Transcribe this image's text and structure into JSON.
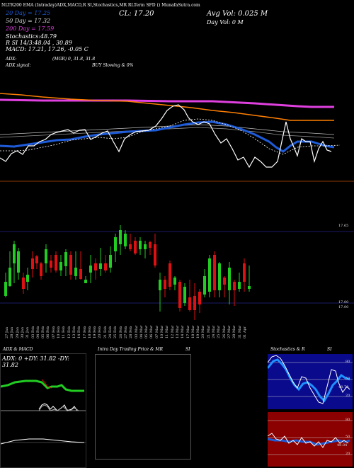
{
  "header": {
    "top_line": "NLTR200 EMA (Intraday)ADX,MACD,R   SI,Stochastics,MR   RLTerm SFD   () MunafaSutra.com",
    "sma20": "20  Day = 17.25",
    "sma50": "50  Day = 17.32",
    "sma200": "200  Day = 17.59",
    "stochastics": "Stochastics:48.79",
    "rsi": "R        SI 14/3:48.04  , 30.89",
    "macd": "MACD: 17.21,  17.26, -0.05 C",
    "close": "CL: 17.20",
    "avg_vol": "Avg Vol: 0.025  M",
    "day_vol": "Day Vol: 0    M"
  },
  "adx_line": {
    "adx": "ADX:",
    "mgr": "(MGR) 0,  31.8,  31.8",
    "signal": "ADX  signal:",
    "buy": "BUY Slowing & 0%"
  },
  "price_axis": {
    "top": "17.65",
    "bottom": "17.00",
    "bottom2": "17.00"
  },
  "x_labels": [
    "27 Jan",
    "28 Jan",
    "29 Jan",
    "30 Jan",
    "31 Jan",
    "03 Feb",
    "04 Feb",
    "05 Feb",
    "06 Feb",
    "07 Feb",
    "10 Feb",
    "11 Feb",
    "12 Feb",
    "13 Feb",
    "14 Feb",
    "17 Feb",
    "18 Feb",
    "19 Feb",
    "20 Feb",
    "21 Feb",
    "24 Feb",
    "25 Feb",
    "26 Feb",
    "27 Feb",
    "28 Feb",
    "03 Mar",
    "04 Mar",
    "05 Mar",
    "06 Mar",
    "07 Mar",
    "10 Mar",
    "11 Mar",
    "12 Mar",
    "13 Mar",
    "14 Mar",
    "17 Mar",
    "18 Mar",
    "19 Mar",
    "20 Mar",
    "21 Mar",
    "24 Mar",
    "25 Mar",
    "26 Mar",
    "27 Mar",
    "28 Mar",
    "31 Mar",
    "01 Apr"
  ],
  "panels": {
    "adx_macd": {
      "title": "ADX  & MACD",
      "readout": "ADX: 0   +DY: 31.82   -DY: 31.82"
    },
    "intraday": {
      "title": "Intra  Day Trading Price  & MR",
      "suffix": "SI"
    },
    "stoch": {
      "title": "Stochastics & R",
      "suffix": "SI",
      "ticks": [
        "80",
        "50",
        "20"
      ],
      "value_label": "48.79"
    },
    "rsi": {
      "ticks": [
        "80",
        "50",
        "20"
      ],
      "value_label": "48.04"
    }
  },
  "colors": {
    "background": "#000000",
    "sma20": "#1e5bd8",
    "sma50": "#ff7f00",
    "sma200": "#e040e0",
    "up": "#22cc22",
    "down": "#dd1111",
    "rsi_bg": "#8b0000",
    "stoch_bg": "#0a0a8c"
  }
}
